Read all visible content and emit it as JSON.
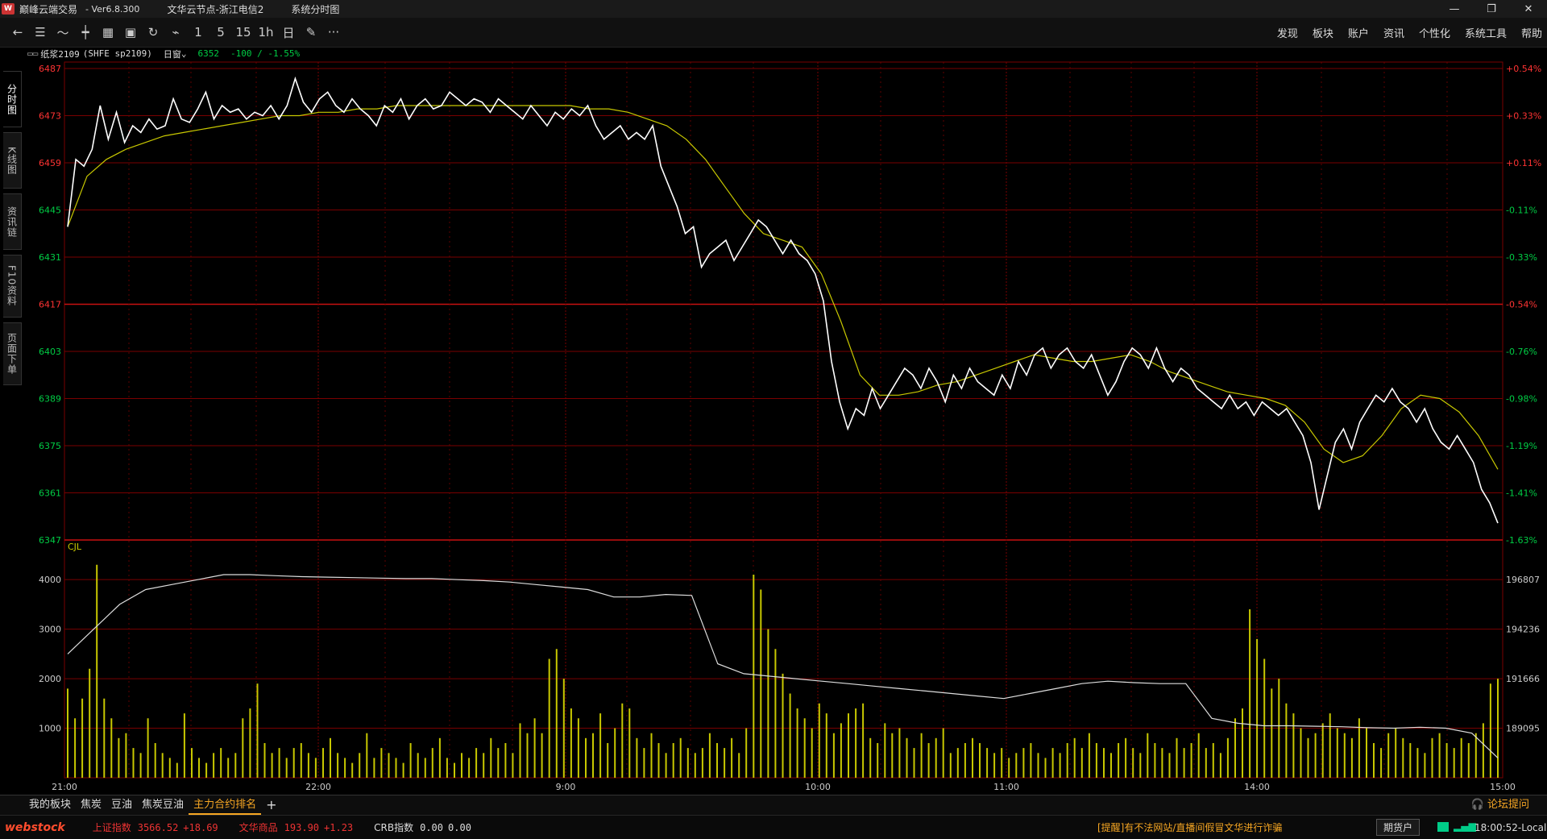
{
  "window": {
    "app_title": "巅峰云端交易",
    "version": "-  Ver6.8.300",
    "node": "文华云节点-浙江电信2",
    "view": "系统分时图",
    "icons": [
      "minimize-icon",
      "restore-icon",
      "close-icon"
    ]
  },
  "toolbar": {
    "icons": [
      "back-arrow-icon",
      "list-icon",
      "line-chart-icon",
      "kline-icon",
      "grid-icon",
      "save-icon",
      "refresh-icon",
      "draw-tool-icon"
    ],
    "periods": [
      "1",
      "5",
      "15",
      "1h",
      "日"
    ],
    "menu": [
      "发现",
      "板块",
      "账户",
      "资讯",
      "个性化",
      "系统工具",
      "帮助"
    ]
  },
  "chart_header": {
    "contract": "纸浆2109",
    "code": "(SHFE sp2109)",
    "mode": "日窗",
    "last": "6352",
    "change": "-100 / -1.55%"
  },
  "sidebar": {
    "tabs": [
      "分时图",
      "K线图",
      "资讯链",
      "F10资料",
      "页面下单"
    ]
  },
  "colors": {
    "up": "#ff3333",
    "down": "#00cc44",
    "grid": "#7a0000",
    "price": "#ffffff",
    "avg": "#c8c800",
    "volume": "#c8c800",
    "oi": "#dddddd"
  },
  "chart_data": {
    "type": "line",
    "title": "",
    "price_axis": {
      "left_ticks": [
        "6487",
        "6473",
        "6459",
        "6445",
        "6431",
        "6417",
        "6403",
        "6389",
        "6375",
        "6361",
        "6347"
      ],
      "right_ticks": [
        "+0.54%",
        "+0.33%",
        "+0.11%",
        "-0.11%",
        "-0.33%",
        "-0.54%",
        "-0.76%",
        "-0.98%",
        "-1.19%",
        "-1.41%",
        "-1.63%"
      ],
      "ylim": [
        6347,
        6487
      ],
      "prev_settle": 6452
    },
    "time_ticks": [
      "21:00",
      "22:00",
      "9:00",
      "10:00",
      "11:00",
      "14:00",
      "15:00"
    ],
    "price_series": {
      "name": "",
      "values": [
        6440,
        6460,
        6458,
        6463,
        6476,
        6466,
        6474,
        6465,
        6470,
        6468,
        6472,
        6469,
        6470,
        6478,
        6472,
        6471,
        6475,
        6480,
        6472,
        6476,
        6474,
        6475,
        6472,
        6474,
        6473,
        6476,
        6472,
        6476,
        6484,
        6477,
        6474,
        6478,
        6480,
        6476,
        6474,
        6478,
        6475,
        6473,
        6470,
        6476,
        6474,
        6478,
        6472,
        6476,
        6478,
        6475,
        6476,
        6480,
        6478,
        6476,
        6478,
        6477,
        6474,
        6478,
        6476,
        6474,
        6472,
        6476,
        6473,
        6470,
        6474,
        6472,
        6475,
        6473,
        6476,
        6470,
        6466,
        6468,
        6470,
        6466,
        6468,
        6466,
        6470,
        6458,
        6452,
        6446,
        6438,
        6440,
        6428,
        6432,
        6434,
        6436,
        6430,
        6434,
        6438,
        6442,
        6440,
        6436,
        6432,
        6436,
        6432,
        6430,
        6426,
        6418,
        6400,
        6388,
        6380,
        6386,
        6384,
        6392,
        6386,
        6390,
        6394,
        6398,
        6396,
        6392,
        6398,
        6394,
        6388,
        6396,
        6392,
        6398,
        6394,
        6392,
        6390,
        6396,
        6392,
        6400,
        6396,
        6402,
        6404,
        6398,
        6402,
        6404,
        6400,
        6398,
        6402,
        6396,
        6390,
        6394,
        6400,
        6404,
        6402,
        6398,
        6404,
        6398,
        6394,
        6398,
        6396,
        6392,
        6390,
        6388,
        6386,
        6390,
        6386,
        6388,
        6384,
        6388,
        6386,
        6384,
        6386,
        6382,
        6378,
        6370,
        6356,
        6366,
        6376,
        6380,
        6374,
        6382,
        6386,
        6390,
        6388,
        6392,
        6388,
        6386,
        6382,
        6386,
        6380,
        6376,
        6374,
        6378,
        6374,
        6370,
        6362,
        6358,
        6352
      ]
    },
    "avg_series": {
      "name": "",
      "values": [
        6440,
        6455,
        6460,
        6463,
        6465,
        6467,
        6468,
        6469,
        6470,
        6471,
        6472,
        6473,
        6473,
        6474,
        6474,
        6475,
        6475,
        6476,
        6476,
        6476,
        6476,
        6476,
        6476,
        6476,
        6476,
        6476,
        6476,
        6475,
        6475,
        6474,
        6472,
        6470,
        6466,
        6460,
        6452,
        6444,
        6438,
        6436,
        6434,
        6426,
        6412,
        6396,
        6390,
        6390,
        6391,
        6393,
        6394,
        6396,
        6398,
        6400,
        6402,
        6401,
        6400,
        6400,
        6401,
        6402,
        6400,
        6397,
        6395,
        6393,
        6391,
        6390,
        6389,
        6387,
        6382,
        6374,
        6370,
        6372,
        6378,
        6386,
        6390,
        6389,
        6385,
        6378,
        6368
      ]
    },
    "volume_axis": {
      "left_ticks": [
        "4000",
        "3000",
        "2000",
        "1000"
      ],
      "right_ticks": [
        "196807",
        "194236",
        "191666",
        "189095"
      ],
      "label": "CJL",
      "ylim": [
        0,
        4800
      ]
    },
    "open_interest_series": {
      "name": "",
      "values": [
        2500,
        3000,
        3500,
        3800,
        3900,
        4000,
        4100,
        4100,
        4080,
        4060,
        4050,
        4040,
        4030,
        4020,
        4020,
        4000,
        3980,
        3950,
        3900,
        3850,
        3800,
        3650,
        3650,
        3700,
        3680,
        2300,
        2100,
        2050,
        2000,
        1950,
        1900,
        1850,
        1800,
        1750,
        1700,
        1650,
        1600,
        1700,
        1800,
        1900,
        1950,
        1920,
        1900,
        1900,
        1200,
        1100,
        1050,
        1050,
        1040,
        1030,
        1010,
        1000,
        1020,
        1000,
        900,
        400
      ]
    },
    "volume_bars": [
      1800,
      1200,
      1600,
      2200,
      4300,
      1600,
      1200,
      800,
      900,
      600,
      500,
      1200,
      700,
      500,
      400,
      300,
      1300,
      600,
      400,
      300,
      500,
      600,
      400,
      500,
      1200,
      1400,
      1900,
      700,
      500,
      600,
      400,
      600,
      700,
      500,
      400,
      600,
      800,
      500,
      400,
      300,
      500,
      900,
      400,
      600,
      500,
      400,
      300,
      700,
      500,
      400,
      600,
      800,
      400,
      300,
      500,
      400,
      600,
      500,
      800,
      600,
      700,
      500,
      1100,
      900,
      1200,
      900,
      2400,
      2600,
      2000,
      1400,
      1200,
      800,
      900,
      1300,
      700,
      1000,
      1500,
      1400,
      800,
      600,
      900,
      700,
      500,
      700,
      800,
      600,
      500,
      600,
      900,
      700,
      600,
      800,
      500,
      1000,
      4100,
      3800,
      3000,
      2600,
      2100,
      1700,
      1400,
      1200,
      1000,
      1500,
      1300,
      900,
      1100,
      1300,
      1400,
      1500,
      800,
      700,
      1100,
      900,
      1000,
      800,
      600,
      900,
      700,
      800,
      1000,
      500,
      600,
      700,
      800,
      700,
      600,
      500,
      600,
      400,
      500,
      600,
      700,
      500,
      400,
      600,
      500,
      700,
      800,
      600,
      900,
      700,
      600,
      500,
      700,
      800,
      600,
      500,
      900,
      700,
      600,
      500,
      800,
      600,
      700,
      900,
      600,
      700,
      500,
      800,
      1200,
      1400,
      3400,
      2800,
      2400,
      1800,
      2000,
      1500,
      1300,
      1000,
      800,
      900,
      1100,
      1300,
      1000,
      900,
      800,
      1200,
      1000,
      700,
      600,
      900,
      1000,
      800,
      700,
      600,
      500,
      800,
      900,
      700,
      600,
      800,
      700,
      900,
      1100,
      1900,
      2000
    ],
    "ylabel": ""
  },
  "bottom_tabs": [
    "我的板块",
    "焦炭",
    "豆油",
    "焦炭豆油",
    "主力合约排名",
    "+"
  ],
  "forum_link": "论坛提问",
  "statusbar": {
    "brand": "webstock",
    "indices": [
      {
        "name": "上证指数",
        "value": "3566.52",
        "change": "+18.69"
      },
      {
        "name": "文华商品",
        "value": "193.90",
        "change": "+1.23"
      },
      {
        "name": "CRB指数",
        "value": "0.00",
        "change": "0.00"
      }
    ],
    "notice": "[提醒]有不法网站/直播间假冒文华进行诈骗",
    "account_button": "期货户",
    "clock": "18:00:52-Local"
  }
}
